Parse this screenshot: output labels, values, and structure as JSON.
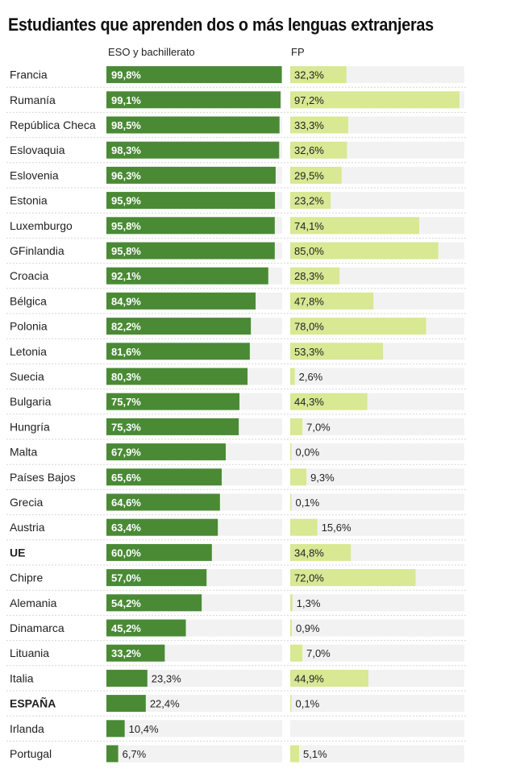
{
  "chart_data": {
    "type": "bar",
    "title": "Estudiantes que aprenden dos o más lenguas extranjeras",
    "series": [
      {
        "name": "ESO y bachillerato",
        "color": "#4a8a35"
      },
      {
        "name": "FP",
        "color": "#d8e893"
      }
    ],
    "xlim": [
      0,
      100
    ],
    "rows": [
      {
        "label": "Francia",
        "eso": 99.8,
        "eso_label": "99,8%",
        "fp": 32.3,
        "fp_label": "32,3%",
        "bold": false
      },
      {
        "label": "Rumanía",
        "eso": 99.1,
        "eso_label": "99,1%",
        "fp": 97.2,
        "fp_label": "97,2%",
        "bold": false
      },
      {
        "label": "República Checa",
        "eso": 98.5,
        "eso_label": "98,5%",
        "fp": 33.3,
        "fp_label": "33,3%",
        "bold": false
      },
      {
        "label": "Eslovaquia",
        "eso": 98.3,
        "eso_label": "98,3%",
        "fp": 32.6,
        "fp_label": "32,6%",
        "bold": false
      },
      {
        "label": "Eslovenia",
        "eso": 96.3,
        "eso_label": "96,3%",
        "fp": 29.5,
        "fp_label": "29,5%",
        "bold": false
      },
      {
        "label": "Estonia",
        "eso": 95.9,
        "eso_label": "95,9%",
        "fp": 23.2,
        "fp_label": "23,2%",
        "bold": false
      },
      {
        "label": "Luxemburgo",
        "eso": 95.8,
        "eso_label": "95,8%",
        "fp": 74.1,
        "fp_label": "74,1%",
        "bold": false
      },
      {
        "label": "GFinlandia",
        "eso": 95.8,
        "eso_label": "95,8%",
        "fp": 85.0,
        "fp_label": "85,0%",
        "bold": false
      },
      {
        "label": "Croacia",
        "eso": 92.1,
        "eso_label": "92,1%",
        "fp": 28.3,
        "fp_label": "28,3%",
        "bold": false
      },
      {
        "label": "Bélgica",
        "eso": 84.9,
        "eso_label": "84,9%",
        "fp": 47.8,
        "fp_label": "47,8%",
        "bold": false
      },
      {
        "label": "Polonia",
        "eso": 82.2,
        "eso_label": "82,2%",
        "fp": 78.0,
        "fp_label": "78,0%",
        "bold": false
      },
      {
        "label": "Letonia",
        "eso": 81.6,
        "eso_label": "81,6%",
        "fp": 53.3,
        "fp_label": "53,3%",
        "bold": false
      },
      {
        "label": "Suecia",
        "eso": 80.3,
        "eso_label": "80,3%",
        "fp": 2.6,
        "fp_label": "2,6%",
        "bold": false
      },
      {
        "label": "Bulgaria",
        "eso": 75.7,
        "eso_label": "75,7%",
        "fp": 44.3,
        "fp_label": "44,3%",
        "bold": false
      },
      {
        "label": "Hungría",
        "eso": 75.3,
        "eso_label": "75,3%",
        "fp": 7.0,
        "fp_label": "7,0%",
        "bold": false
      },
      {
        "label": "Malta",
        "eso": 67.9,
        "eso_label": "67,9%",
        "fp": 0.0,
        "fp_label": "0,0%",
        "bold": false
      },
      {
        "label": "Países Bajos",
        "eso": 65.6,
        "eso_label": "65,6%",
        "fp": 9.3,
        "fp_label": "9,3%",
        "bold": false
      },
      {
        "label": "Grecia",
        "eso": 64.6,
        "eso_label": "64,6%",
        "fp": 0.1,
        "fp_label": "0,1%",
        "bold": false
      },
      {
        "label": "Austria",
        "eso": 63.4,
        "eso_label": "63,4%",
        "fp": 15.6,
        "fp_label": "15,6%",
        "bold": false
      },
      {
        "label": "UE",
        "eso": 60.0,
        "eso_label": "60,0%",
        "fp": 34.8,
        "fp_label": "34,8%",
        "bold": true
      },
      {
        "label": "Chipre",
        "eso": 57.0,
        "eso_label": "57,0%",
        "fp": 72.0,
        "fp_label": "72,0%",
        "bold": false
      },
      {
        "label": "Alemania",
        "eso": 54.2,
        "eso_label": "54,2%",
        "fp": 1.3,
        "fp_label": "1,3%",
        "bold": false
      },
      {
        "label": "Dinamarca",
        "eso": 45.2,
        "eso_label": "45,2%",
        "fp": 0.9,
        "fp_label": "0,9%",
        "bold": false
      },
      {
        "label": "Lituania",
        "eso": 33.2,
        "eso_label": "33,2%",
        "fp": 7.0,
        "fp_label": "7,0%",
        "bold": false
      },
      {
        "label": "Italia",
        "eso": 23.3,
        "eso_label": "23,3%",
        "fp": 44.9,
        "fp_label": "44,9%",
        "bold": false
      },
      {
        "label": "ESPAÑA",
        "eso": 22.4,
        "eso_label": "22,4%",
        "fp": 0.1,
        "fp_label": "0,1%",
        "bold": true
      },
      {
        "label": "Irlanda",
        "eso": 10.4,
        "eso_label": "10,4%",
        "fp": null,
        "fp_label": "",
        "bold": false
      },
      {
        "label": "Portugal",
        "eso": 6.7,
        "eso_label": "6,7%",
        "fp": 5.1,
        "fp_label": "5,1%",
        "bold": false
      }
    ]
  }
}
